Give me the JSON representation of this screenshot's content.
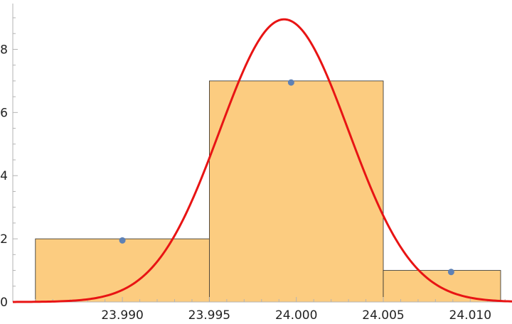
{
  "chart_data": {
    "type": "bar",
    "title": "",
    "xlabel": "",
    "ylabel": "",
    "xlim": [
      23.9837,
      24.0124
    ],
    "ylim": [
      0,
      9.45
    ],
    "bins": [
      {
        "start": 23.985,
        "end": 23.995,
        "count": 2
      },
      {
        "start": 23.995,
        "end": 24.005,
        "count": 7
      },
      {
        "start": 24.005,
        "end": 24.015,
        "count": 1
      }
    ],
    "points": [
      {
        "x": 23.99,
        "y": 1.95
      },
      {
        "x": 23.9997,
        "y": 6.95
      },
      {
        "x": 24.0089,
        "y": 0.95
      }
    ],
    "curve": {
      "type": "normal-density-scaled",
      "mean": 23.9993,
      "sd": 0.0037,
      "peak": 8.95
    },
    "x_ticks": [
      {
        "value": 23.99,
        "label": "23.990"
      },
      {
        "value": 23.995,
        "label": "23.995"
      },
      {
        "value": 24.0,
        "label": "24.000"
      },
      {
        "value": 24.005,
        "label": "24.005"
      },
      {
        "value": 24.01,
        "label": "24.010"
      }
    ],
    "y_ticks": [
      {
        "value": 0,
        "label": "0"
      },
      {
        "value": 2,
        "label": "2"
      },
      {
        "value": 4,
        "label": "4"
      },
      {
        "value": 6,
        "label": "6"
      },
      {
        "value": 8,
        "label": "8"
      }
    ],
    "colors": {
      "bar_fill": "#fccc80",
      "curve": "#e81414",
      "points": "#5e81b5",
      "axis": "#b3b3b3"
    },
    "grid": false,
    "legend": "none"
  }
}
